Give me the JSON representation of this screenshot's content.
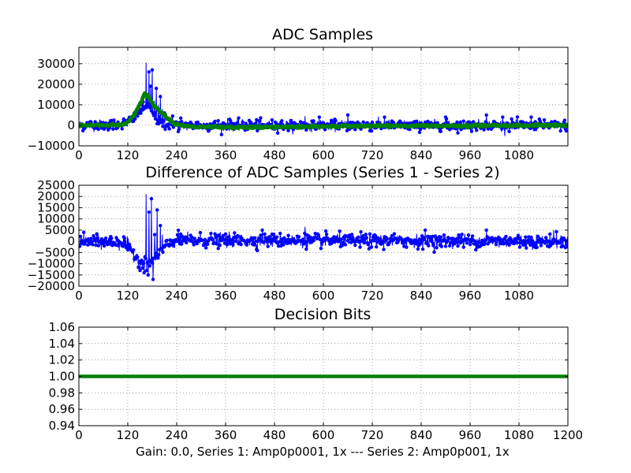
{
  "footer": {
    "xlabel": "Gain: 0.0, Series 1: Amp0p0001, 1x --- Series 2: Amp0p001, 1x"
  },
  "colors": {
    "series1": "#0000ff",
    "series2": "#008000",
    "diff": "#0000ff",
    "decision": "#008000"
  },
  "chart_data": [
    {
      "type": "line",
      "title": "ADC Samples",
      "xlabel": "",
      "ylabel": "",
      "xlim": [
        0,
        1200
      ],
      "ylim": [
        -10000,
        38000
      ],
      "xticks": [
        0,
        120,
        240,
        360,
        480,
        600,
        720,
        840,
        960,
        1080
      ],
      "xtick_labels": [
        "0",
        "120",
        "240",
        "360",
        "480",
        "600",
        "720",
        "840",
        "960",
        "1080"
      ],
      "yticks": [
        -10000,
        0,
        10000,
        20000,
        30000
      ],
      "ytick_labels": [
        "−10000",
        "0",
        "10000",
        "20000",
        "30000"
      ],
      "grid": true,
      "markers": true,
      "series": [
        {
          "name": "Series 1",
          "color": "#0000ff",
          "noise_std": 1300,
          "x": [
            0,
            90,
            120,
            135,
            145,
            150,
            155,
            160,
            165,
            170,
            175,
            180,
            185,
            190,
            195,
            200,
            205,
            210,
            220,
            230,
            240,
            260,
            300,
            1200
          ],
          "values": [
            0,
            400,
            1500,
            3500,
            5500,
            7000,
            8000,
            9000,
            9500,
            9000,
            8000,
            6500,
            5000,
            3500,
            2500,
            1500,
            1000,
            600,
            300,
            150,
            0,
            -300,
            0,
            0
          ],
          "spikes": [
            {
              "x": 140,
              "value": 6500
            },
            {
              "x": 150,
              "value": 10000
            },
            {
              "x": 155,
              "value": 12000
            },
            {
              "x": 160,
              "value": 8000
            },
            {
              "x": 165,
              "value": 30500
            },
            {
              "x": 168,
              "value": 15000
            },
            {
              "x": 172,
              "value": 26000
            },
            {
              "x": 176,
              "value": 19000
            },
            {
              "x": 180,
              "value": 27000
            },
            {
              "x": 185,
              "value": 12000
            },
            {
              "x": 190,
              "value": 18000
            },
            {
              "x": 195,
              "value": 10000
            },
            {
              "x": 200,
              "value": 14000
            },
            {
              "x": 205,
              "value": 8000
            },
            {
              "x": 210,
              "value": 6000
            },
            {
              "x": 230,
              "value": 4500
            },
            {
              "x": 250,
              "value": 3500
            },
            {
              "x": 365,
              "value": 3500
            },
            {
              "x": 555,
              "value": 4500
            },
            {
              "x": 590,
              "value": 4000
            },
            {
              "x": 660,
              "value": 5000
            },
            {
              "x": 750,
              "value": 4000
            },
            {
              "x": 900,
              "value": 4000
            },
            {
              "x": 1000,
              "value": 5000
            },
            {
              "x": 1040,
              "value": 4000
            },
            {
              "x": 1110,
              "value": 4000
            }
          ]
        },
        {
          "name": "Series 2",
          "color": "#008000",
          "noise_std": 250,
          "x": [
            0,
            100,
            115,
            125,
            135,
            145,
            155,
            162,
            168,
            175,
            182,
            190,
            200,
            210,
            220,
            235,
            250,
            280,
            400,
            700,
            1200
          ],
          "values": [
            0,
            200,
            800,
            2500,
            5000,
            8500,
            12500,
            15500,
            14500,
            12000,
            10000,
            8500,
            6500,
            5000,
            3000,
            1000,
            0,
            -800,
            -1000,
            -300,
            0
          ]
        }
      ]
    },
    {
      "type": "line",
      "title": "Difference of ADC Samples (Series 1 - Series 2)",
      "xlabel": "",
      "ylabel": "",
      "xlim": [
        0,
        1200
      ],
      "ylim": [
        -20000,
        25000
      ],
      "xticks": [
        0,
        120,
        240,
        360,
        480,
        600,
        720,
        840,
        960,
        1080
      ],
      "xtick_labels": [
        "0",
        "120",
        "240",
        "360",
        "480",
        "600",
        "720",
        "840",
        "960",
        "1080"
      ],
      "yticks": [
        -20000,
        -15000,
        -10000,
        -5000,
        0,
        5000,
        10000,
        15000,
        20000,
        25000
      ],
      "ytick_labels": [
        "−20000",
        "−15000",
        "−10000",
        "−5000",
        "0",
        "5000",
        "10000",
        "15000",
        "20000",
        "25000"
      ],
      "grid": true,
      "markers": true,
      "series": [
        {
          "name": "Series 1 - Series 2",
          "color": "#0000ff",
          "noise_std": 1500,
          "x": [
            0,
            110,
            120,
            130,
            140,
            150,
            160,
            170,
            180,
            190,
            200,
            210,
            220,
            230,
            240,
            1200
          ],
          "values": [
            0,
            -500,
            -2000,
            -4500,
            -7000,
            -8500,
            -9500,
            -9000,
            -8000,
            -6500,
            -4500,
            -3000,
            -1500,
            0,
            500,
            0
          ],
          "spikes": [
            {
              "x": 165,
              "value": 21000
            },
            {
              "x": 172,
              "value": 13000
            },
            {
              "x": 178,
              "value": 19000
            },
            {
              "x": 182,
              "value": -17000
            },
            {
              "x": 186,
              "value": 3000
            },
            {
              "x": 192,
              "value": 14000
            },
            {
              "x": 197,
              "value": -8000
            },
            {
              "x": 200,
              "value": 7000
            },
            {
              "x": 205,
              "value": 3000
            },
            {
              "x": 160,
              "value": -14000
            },
            {
              "x": 170,
              "value": -15000
            },
            {
              "x": 150,
              "value": -13000
            },
            {
              "x": 555,
              "value": 6500
            },
            {
              "x": 450,
              "value": 5000
            },
            {
              "x": 850,
              "value": 5000
            },
            {
              "x": 1000,
              "value": 5000
            },
            {
              "x": 1165,
              "value": 5000
            },
            {
              "x": 435,
              "value": -4500
            }
          ]
        }
      ]
    },
    {
      "type": "line",
      "title": "Decision Bits",
      "xlabel": "Gain: 0.0, Series 1: Amp0p0001, 1x --- Series 2: Amp0p001, 1x",
      "ylabel": "",
      "xlim": [
        0,
        1200
      ],
      "ylim": [
        0.94,
        1.06
      ],
      "xticks": [
        0,
        120,
        240,
        360,
        480,
        600,
        720,
        840,
        960,
        1080,
        1200
      ],
      "xtick_labels": [
        "0",
        "120",
        "240",
        "360",
        "480",
        "600",
        "720",
        "840",
        "960",
        "1080",
        "1200"
      ],
      "yticks": [
        0.94,
        0.96,
        0.98,
        1.0,
        1.02,
        1.04,
        1.06
      ],
      "ytick_labels": [
        "0.94",
        "0.96",
        "0.98",
        "1.00",
        "1.02",
        "1.04",
        "1.06"
      ],
      "grid": true,
      "markers": true,
      "series": [
        {
          "name": "Decision",
          "color": "#008000",
          "noise_std": 0,
          "x": [
            0,
            1200
          ],
          "values": [
            1.0,
            1.0
          ]
        }
      ]
    }
  ]
}
